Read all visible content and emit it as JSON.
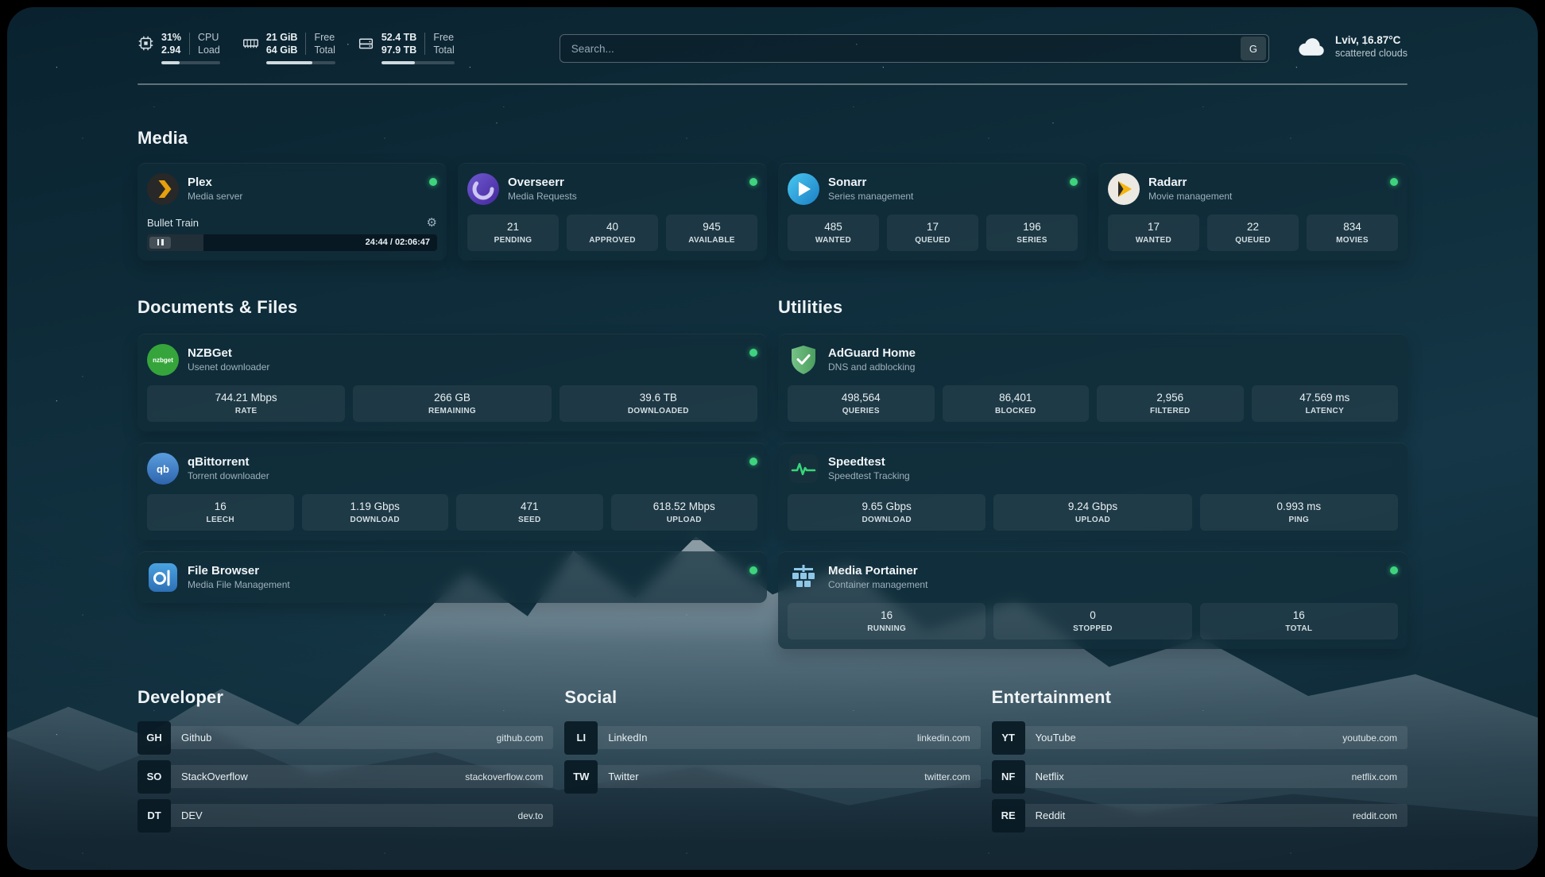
{
  "colors": {
    "status_online": "#3ed47e",
    "plex_accent": "#e5a00d",
    "background_top": "#0a222f"
  },
  "header": {
    "cpu": {
      "value_top": "31%",
      "value_bottom": "2.94",
      "label_top": "CPU",
      "label_bottom": "Load",
      "usage_percent": 31
    },
    "ram": {
      "value_top": "21 GiB",
      "value_bottom": "64 GiB",
      "label_top": "Free",
      "label_bottom": "Total",
      "usage_percent": 67
    },
    "disk": {
      "value_top": "52.4 TB",
      "value_bottom": "97.9 TB",
      "label_top": "Free",
      "label_bottom": "Total",
      "usage_percent": 46
    },
    "search": {
      "placeholder": "Search...",
      "engine_label": "G"
    },
    "weather": {
      "location": "Lviv, 16.87°C",
      "condition": "scattered clouds"
    }
  },
  "sections": {
    "media": "Media",
    "documents": "Documents & Files",
    "utilities": "Utilities",
    "developer": "Developer",
    "social": "Social",
    "entertainment": "Entertainment"
  },
  "apps": {
    "plex": {
      "name": "Plex",
      "desc": "Media server",
      "now_playing": "Bullet Train",
      "time": "24:44 / 02:06:47",
      "progress_percent": 19.5
    },
    "overseerr": {
      "name": "Overseerr",
      "desc": "Media Requests",
      "stats": [
        {
          "value": "21",
          "label": "PENDING"
        },
        {
          "value": "40",
          "label": "APPROVED"
        },
        {
          "value": "945",
          "label": "AVAILABLE"
        }
      ]
    },
    "sonarr": {
      "name": "Sonarr",
      "desc": "Series management",
      "stats": [
        {
          "value": "485",
          "label": "WANTED"
        },
        {
          "value": "17",
          "label": "QUEUED"
        },
        {
          "value": "196",
          "label": "SERIES"
        }
      ]
    },
    "radarr": {
      "name": "Radarr",
      "desc": "Movie management",
      "stats": [
        {
          "value": "17",
          "label": "WANTED"
        },
        {
          "value": "22",
          "label": "QUEUED"
        },
        {
          "value": "834",
          "label": "MOVIES"
        }
      ]
    },
    "nzbget": {
      "name": "NZBGet",
      "desc": "Usenet downloader",
      "icon_text": "nzbget",
      "stats": [
        {
          "value": "744.21 Mbps",
          "label": "RATE"
        },
        {
          "value": "266 GB",
          "label": "REMAINING"
        },
        {
          "value": "39.6 TB",
          "label": "DOWNLOADED"
        }
      ]
    },
    "qbittorrent": {
      "name": "qBittorrent",
      "desc": "Torrent downloader",
      "icon_text": "qb",
      "stats": [
        {
          "value": "16",
          "label": "LEECH"
        },
        {
          "value": "1.19 Gbps",
          "label": "DOWNLOAD"
        },
        {
          "value": "471",
          "label": "SEED"
        },
        {
          "value": "618.52 Mbps",
          "label": "UPLOAD"
        }
      ]
    },
    "filebrowser": {
      "name": "File Browser",
      "desc": "Media File Management"
    },
    "adguard": {
      "name": "AdGuard Home",
      "desc": "DNS and adblocking",
      "stats": [
        {
          "value": "498,564",
          "label": "QUERIES"
        },
        {
          "value": "86,401",
          "label": "BLOCKED"
        },
        {
          "value": "2,956",
          "label": "FILTERED"
        },
        {
          "value": "47.569 ms",
          "label": "LATENCY"
        }
      ]
    },
    "speedtest": {
      "name": "Speedtest",
      "desc": "Speedtest Tracking",
      "stats": [
        {
          "value": "9.65 Gbps",
          "label": "DOWNLOAD"
        },
        {
          "value": "9.24 Gbps",
          "label": "UPLOAD"
        },
        {
          "value": "0.993 ms",
          "label": "PING"
        }
      ]
    },
    "portainer": {
      "name": "Media Portainer",
      "desc": "Container management",
      "stats": [
        {
          "value": "16",
          "label": "RUNNING"
        },
        {
          "value": "0",
          "label": "STOPPED"
        },
        {
          "value": "16",
          "label": "TOTAL"
        }
      ]
    }
  },
  "bookmarks": {
    "developer": [
      {
        "abbr": "GH",
        "name": "Github",
        "url": "github.com"
      },
      {
        "abbr": "SO",
        "name": "StackOverflow",
        "url": "stackoverflow.com"
      },
      {
        "abbr": "DT",
        "name": "DEV",
        "url": "dev.to"
      }
    ],
    "social": [
      {
        "abbr": "LI",
        "name": "LinkedIn",
        "url": "linkedin.com"
      },
      {
        "abbr": "TW",
        "name": "Twitter",
        "url": "twitter.com"
      }
    ],
    "entertainment": [
      {
        "abbr": "YT",
        "name": "YouTube",
        "url": "youtube.com"
      },
      {
        "abbr": "NF",
        "name": "Netflix",
        "url": "netflix.com"
      },
      {
        "abbr": "RE",
        "name": "Reddit",
        "url": "reddit.com"
      }
    ]
  }
}
